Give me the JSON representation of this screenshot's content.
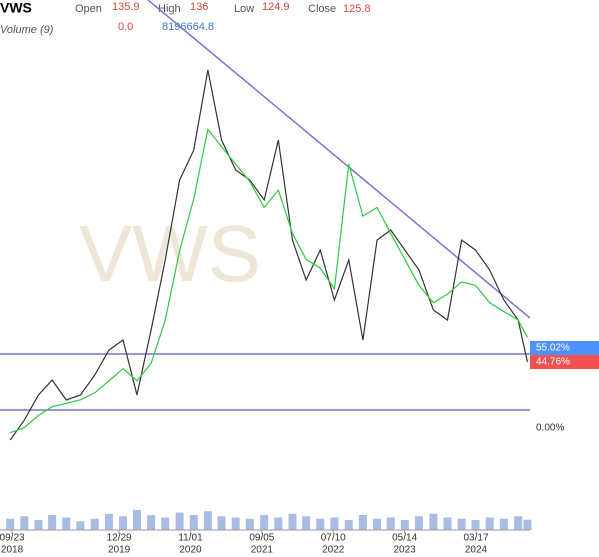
{
  "chart_data": {
    "type": "line",
    "ticker": "VWS",
    "header": {
      "open_label": "Open",
      "open": 135.9,
      "high_label": "High",
      "high": 136.0,
      "low_label": "Low",
      "low": 124.9,
      "close_label": "Close",
      "close": 125.8
    },
    "volume_header": {
      "label": "Volume (9)",
      "values": [
        0.0,
        8196664.8
      ],
      "value_labels": [
        "0.0",
        "8196664.8"
      ],
      "colors": [
        "#d9453d",
        "#3a7bd5"
      ]
    },
    "x": [
      "2018-09-15",
      "2018-11-15",
      "2019-01-15",
      "2019-03-15",
      "2019-05-15",
      "2019-07-15",
      "2019-09-15",
      "2019-11-15",
      "2020-01-15",
      "2020-03-15",
      "2020-05-15",
      "2020-07-15",
      "2020-09-15",
      "2020-11-15",
      "2021-01-15",
      "2021-03-15",
      "2021-05-15",
      "2021-07-15",
      "2021-09-15",
      "2021-11-15",
      "2022-01-15",
      "2022-03-15",
      "2022-05-15",
      "2022-07-15",
      "2022-09-15",
      "2022-11-15",
      "2023-01-15",
      "2023-03-15",
      "2023-05-15",
      "2023-07-15",
      "2023-09-15",
      "2023-11-15",
      "2024-01-15",
      "2024-03-15",
      "2024-05-15",
      "2024-07-15",
      "2024-09-15",
      "2024-10-25"
    ],
    "series": [
      {
        "color": "#333333",
        "values": [
          80.8,
          92.3,
          106.8,
          115.4,
          103.9,
          106.8,
          118.3,
          132.7,
          138.5,
          106.8,
          144.3,
          184.7,
          230.8,
          248.1,
          294.3,
          253.9,
          236.6,
          230.8,
          219.3,
          253.9,
          196.2,
          173.1,
          190.4,
          161.6,
          184.7,
          138.5,
          196.2,
          202.0,
          190.4,
          178.9,
          155.8,
          150.0,
          196.2,
          190.4,
          178.9,
          161.6,
          150.0,
          125.8
        ]
      },
      {
        "color": "#2ecc40",
        "values": [
          85,
          88,
          95,
          100,
          102,
          104,
          108,
          115,
          122,
          115,
          125,
          150,
          190,
          220,
          260,
          250,
          240,
          230,
          215,
          225,
          200,
          185,
          180,
          168,
          240,
          210,
          215,
          200,
          185,
          170,
          160,
          165,
          172,
          170,
          160,
          155,
          150,
          140
        ]
      }
    ],
    "volume": {
      "color": "#6f8fcf",
      "ylim": [
        0,
        40000000
      ],
      "values": [
        9000000,
        11000000,
        8000000,
        12000000,
        10000000,
        7000000,
        9000000,
        13000000,
        11000000,
        16000000,
        12000000,
        10000000,
        14000000,
        12000000,
        15000000,
        11000000,
        10000000,
        9000000,
        12000000,
        10000000,
        13000000,
        11000000,
        9000000,
        10000000,
        8000000,
        12000000,
        9000000,
        10000000,
        8000000,
        11000000,
        13000000,
        10000000,
        9000000,
        8000000,
        10000000,
        9000000,
        11000000,
        8196664.8
      ]
    },
    "xlim": [
      "2018-08-02",
      "2024-11-05"
    ],
    "ylim": [
      63.5,
      334.7
    ],
    "xticks": [
      {
        "value": "2018-09-23",
        "label": "09/23",
        "year": "2018"
      },
      {
        "value": "2019-12-29",
        "label": "12/29",
        "year": "2019"
      },
      {
        "value": "2020-11-01",
        "label": "11/01",
        "year": "2020"
      },
      {
        "value": "2021-09-05",
        "label": "09/05",
        "year": "2021"
      },
      {
        "value": "2022-07-10",
        "label": "07/10",
        "year": "2022"
      },
      {
        "value": "2023-05-14",
        "label": "05/14",
        "year": "2023"
      },
      {
        "value": "2024-03-17",
        "label": "03/17",
        "year": "2024"
      }
    ],
    "trendlines": [
      {
        "x": [
          "2020-05-02",
          "2024-11-05"
        ],
        "y": [
          334.7,
          151.2
        ],
        "color": "#7777cc"
      },
      {
        "x": [
          "2018-08-02",
          "2024-11-05"
        ],
        "y": [
          130.4,
          130.4
        ],
        "color": "#7777cc"
      },
      {
        "x": [
          "2018-08-02",
          "2024-11-05"
        ],
        "y": [
          98.1,
          98.1
        ],
        "color": "#7777cc"
      }
    ],
    "levels": [
      {
        "value": 133.9,
        "label": "55.02%",
        "bg": "#4d90fe"
      },
      {
        "value": 125.8,
        "label": "44.76%",
        "bg": "#f05050"
      },
      {
        "value": 87.7,
        "label": "0.00%"
      }
    ]
  }
}
